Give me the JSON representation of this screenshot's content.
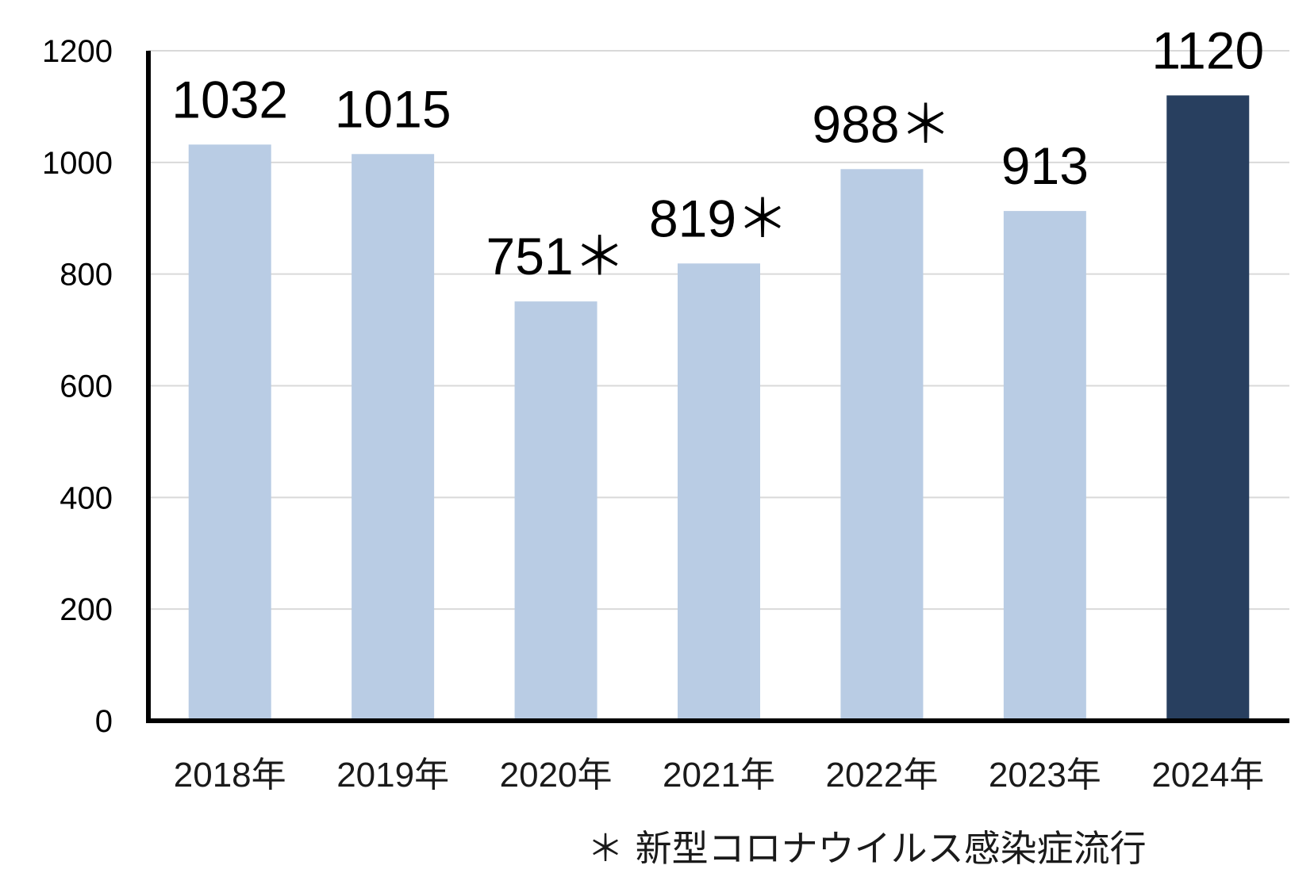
{
  "chart_data": {
    "type": "bar",
    "categories": [
      "2018年",
      "2019年",
      "2020年",
      "2021年",
      "2022年",
      "2023年",
      "2024年"
    ],
    "values": [
      1032,
      1015,
      751,
      819,
      988,
      913,
      1120
    ],
    "data_labels": [
      "1032",
      "1015",
      "751＊",
      "819＊",
      "988＊",
      "913",
      "1120"
    ],
    "yticks": [
      0,
      200,
      400,
      600,
      800,
      1000,
      1200
    ],
    "ylim": [
      0,
      1200
    ],
    "grid": true,
    "title": "",
    "xlabel": "",
    "ylabel": "",
    "colors": {
      "bar": "#b9cce4",
      "highlight": "#283f5f"
    },
    "highlight_category": "2024年",
    "footnote": "＊ 新型コロナウイルス感染症流行"
  }
}
